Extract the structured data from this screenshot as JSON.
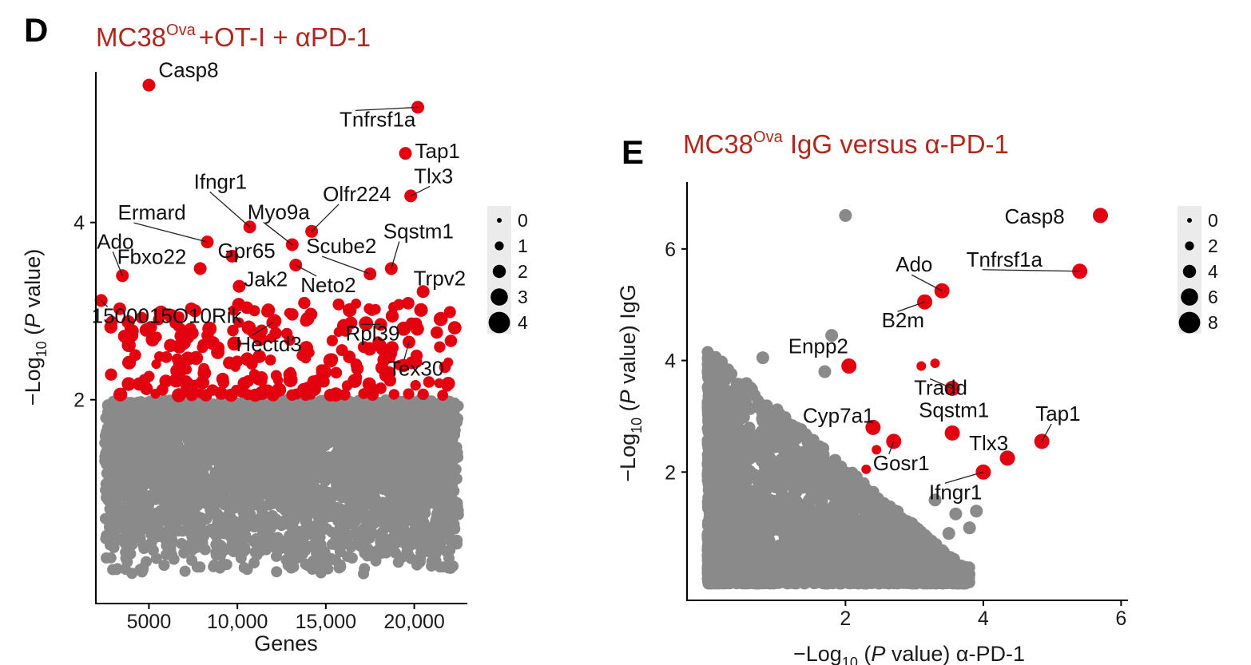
{
  "colors": {
    "sig": "#e3000f",
    "nonsig": "#8a8a8a",
    "title": "#b0281c",
    "legend_bg": "#ebebeb"
  },
  "chart_data": [
    {
      "panel": "D",
      "type": "scatter",
      "title": "MC38",
      "title_sup": "Ova",
      "title_rest": "+OT-I + αPD-1",
      "xlabel": "Genes",
      "ylabel": "−Log10 (P value)",
      "xlim": [
        2000,
        23000
      ],
      "ylim": [
        -0.3,
        5.7
      ],
      "xticks": [
        "5000",
        "10,000",
        "15,000",
        "20,000"
      ],
      "xtick_values": [
        5000,
        10000,
        15000,
        20000
      ],
      "yticks": [
        "2",
        "4"
      ],
      "ytick_values": [
        2,
        4
      ],
      "legend": [
        "0",
        "1",
        "2",
        "3",
        "4"
      ],
      "background_series": {
        "name": "",
        "x_range": [
          2500,
          22500
        ],
        "y_range": [
          0,
          2.0
        ],
        "n": 3600
      },
      "labeled_points": [
        {
          "gene": "Casp8",
          "x": 5000,
          "y": 5.55
        },
        {
          "gene": "Tnfrsf1a",
          "x": 20200,
          "y": 5.3
        },
        {
          "gene": "Tap1",
          "x": 19500,
          "y": 4.78
        },
        {
          "gene": "Tlx3",
          "x": 19800,
          "y": 4.3
        },
        {
          "gene": "Olfr224",
          "x": 14200,
          "y": 3.9
        },
        {
          "gene": "Ifngr1",
          "x": 10700,
          "y": 3.95
        },
        {
          "gene": "Myo9a",
          "x": 13100,
          "y": 3.75
        },
        {
          "gene": "Ermard",
          "x": 8300,
          "y": 3.78
        },
        {
          "gene": "Gpr65",
          "x": 9700,
          "y": 3.62
        },
        {
          "gene": "Sqstm1",
          "x": 18700,
          "y": 3.48
        },
        {
          "gene": "Scube2",
          "x": 17500,
          "y": 3.42
        },
        {
          "gene": "Ado",
          "x": 3500,
          "y": 3.4
        },
        {
          "gene": "Fbxo22",
          "x": 7900,
          "y": 3.48
        },
        {
          "gene": "Jak2",
          "x": 10100,
          "y": 3.28
        },
        {
          "gene": "Trpv2",
          "x": 20500,
          "y": 3.22
        },
        {
          "gene": "Neto2",
          "x": 13300,
          "y": 3.52
        },
        {
          "gene": "1500015O10Rik",
          "x": 2300,
          "y": 3.12
        },
        {
          "gene": "Rpl39",
          "x": 18100,
          "y": 2.85
        },
        {
          "gene": "Hectd3",
          "x": 12000,
          "y": 2.87
        },
        {
          "gene": "Tex30",
          "x": 19700,
          "y": 2.65
        }
      ]
    },
    {
      "panel": "E",
      "type": "scatter",
      "title": "MC38",
      "title_sup": "Ova",
      "title_rest": " IgG versus α-PD-1",
      "xlabel": "−Log10 (P value) α-PD-1",
      "ylabel": "−Log10 (P value) IgG",
      "xlim": [
        -0.3,
        6.1
      ],
      "ylim": [
        -0.3,
        7.2
      ],
      "xticks": [
        "2",
        "4",
        "6"
      ],
      "xtick_values": [
        2,
        4,
        6
      ],
      "yticks": [
        "2",
        "4",
        "6"
      ],
      "ytick_values": [
        2,
        4,
        6
      ],
      "legend": [
        "0",
        "2",
        "4",
        "6",
        "8"
      ],
      "background_series": {
        "name": "",
        "x_range": [
          0,
          3.8
        ],
        "y_range": [
          0,
          6.6
        ],
        "n": 2600
      },
      "labeled_points": [
        {
          "gene": "Casp8",
          "x": 5.7,
          "y": 6.6
        },
        {
          "gene": "Tnfrsf1a",
          "x": 5.4,
          "y": 5.6
        },
        {
          "gene": "Ado",
          "x": 3.4,
          "y": 5.25
        },
        {
          "gene": "B2m",
          "x": 3.15,
          "y": 5.05
        },
        {
          "gene": "Enpp2",
          "x": 2.05,
          "y": 3.9
        },
        {
          "gene": "Tradd",
          "x": 3.55,
          "y": 3.5
        },
        {
          "gene": "Cyp7a1",
          "x": 2.4,
          "y": 2.8
        },
        {
          "gene": "Sqstm1",
          "x": 3.55,
          "y": 2.7
        },
        {
          "gene": "Tap1",
          "x": 4.85,
          "y": 2.55
        },
        {
          "gene": "Tlx3",
          "x": 4.35,
          "y": 2.25
        },
        {
          "gene": "Gosr1",
          "x": 2.7,
          "y": 2.55
        },
        {
          "gene": "Ifngr1",
          "x": 4.0,
          "y": 2.0
        }
      ]
    }
  ]
}
